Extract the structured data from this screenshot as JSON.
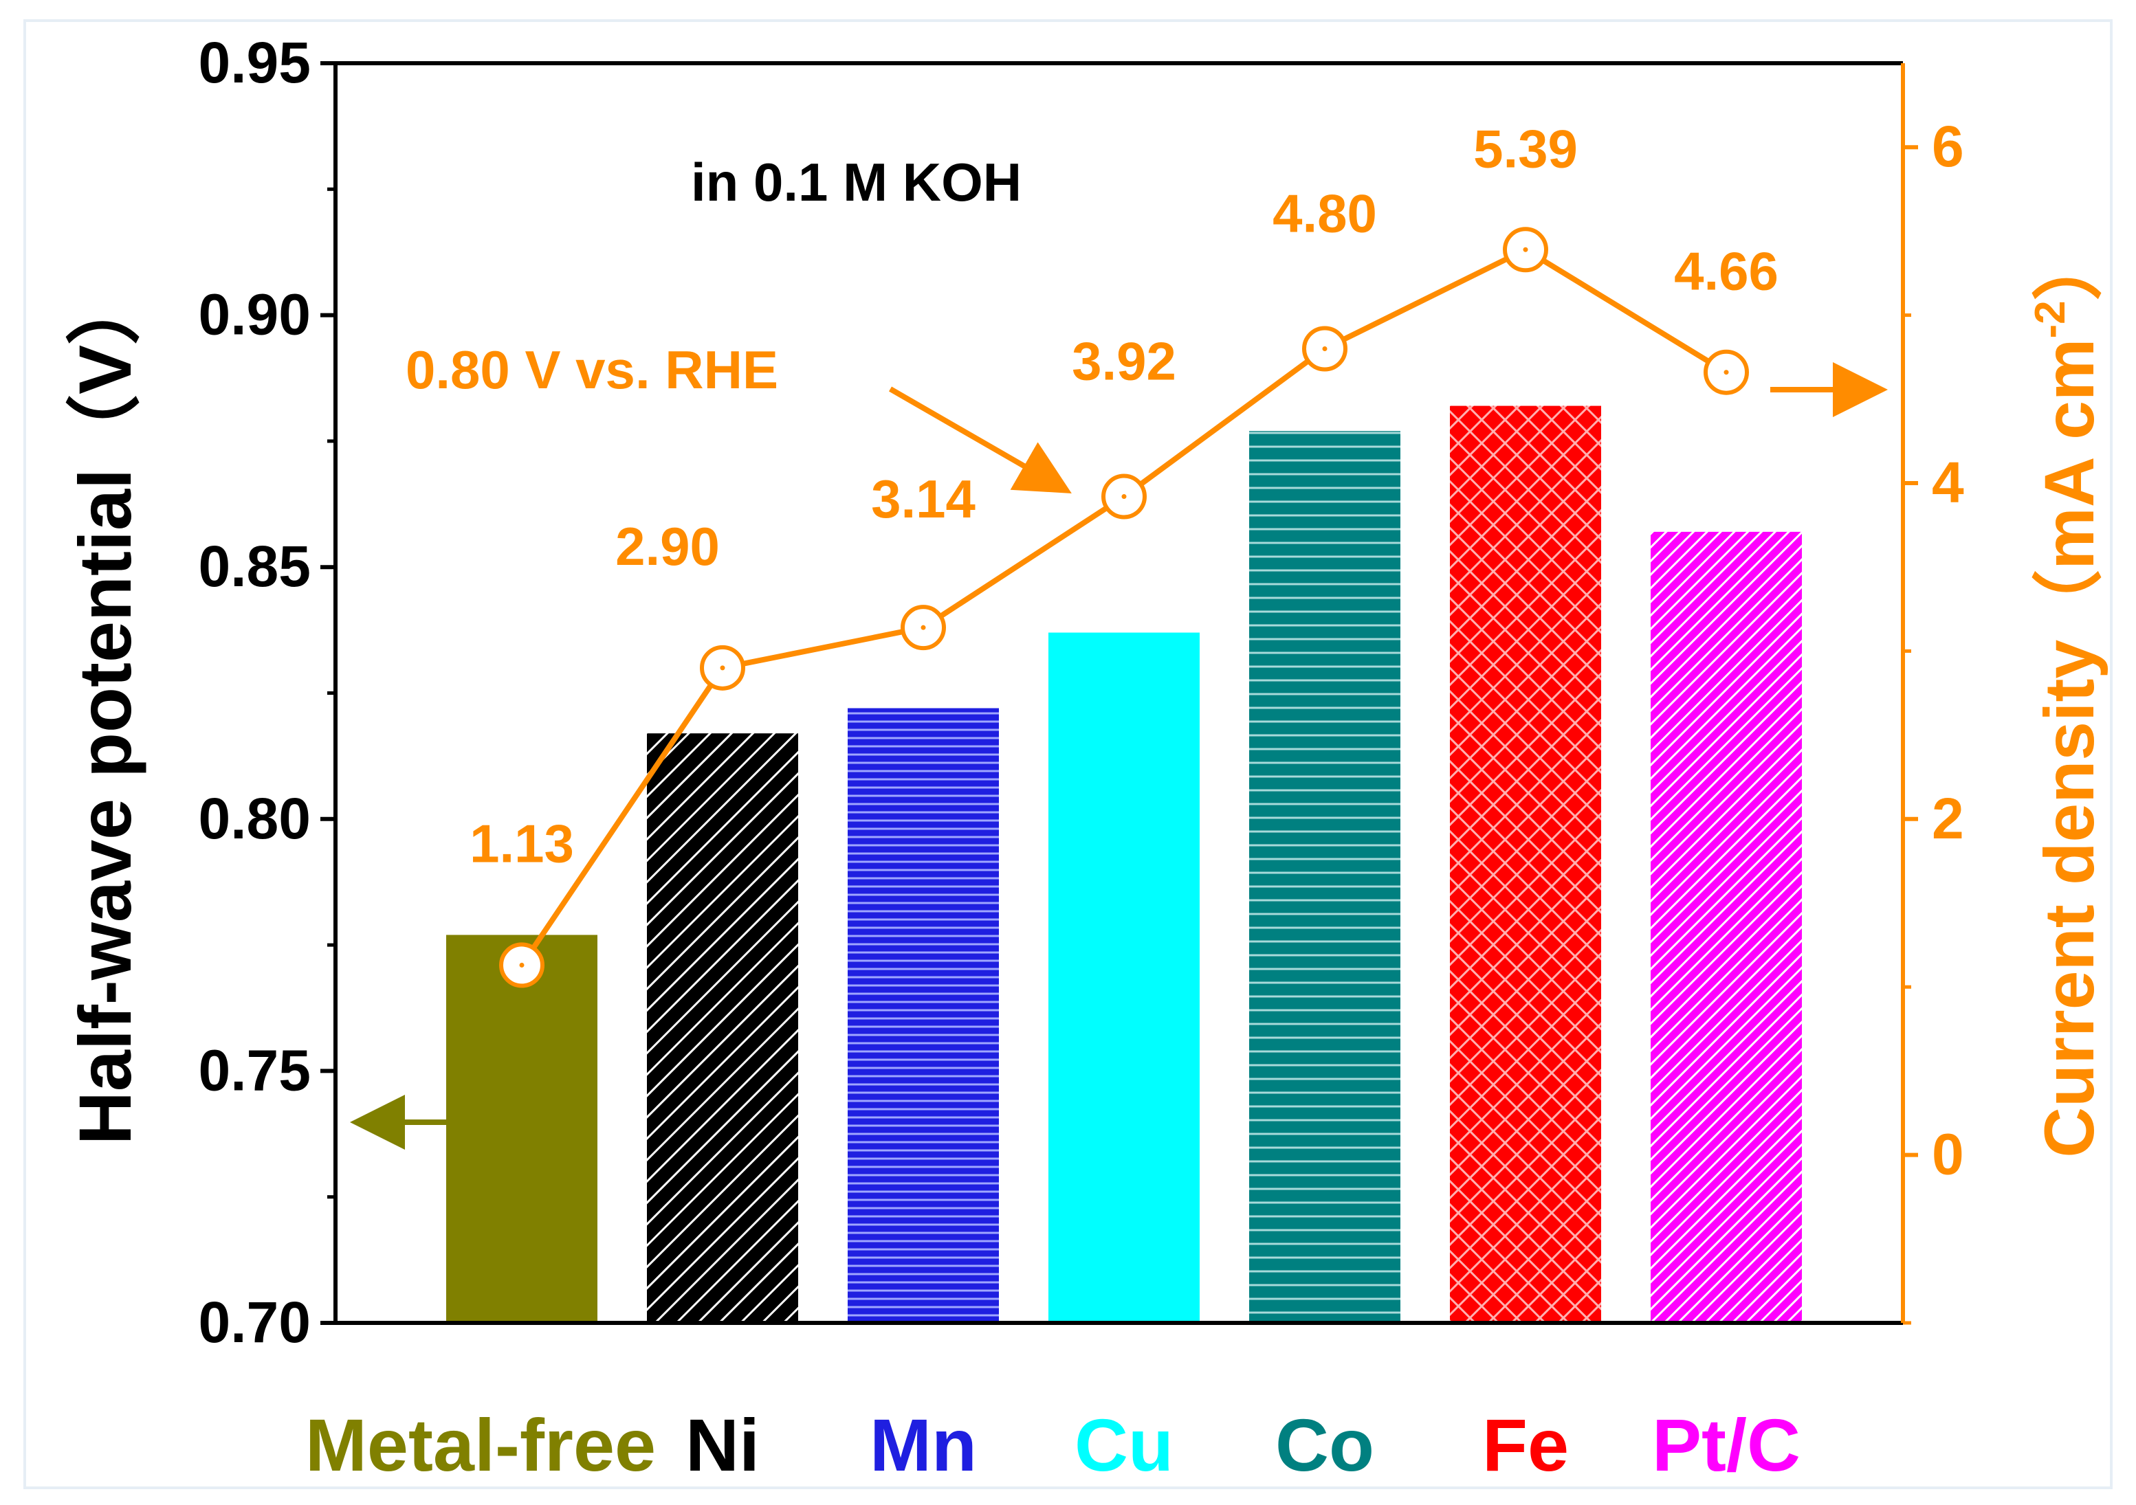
{
  "chart_data": {
    "type": "bar",
    "annotation": "in 0.1 M KOH",
    "reference_label": "0.80 V vs. RHE",
    "categories": [
      "Metal-free",
      "Ni",
      "Mn",
      "Cu",
      "Co",
      "Fe",
      "Pt/C"
    ],
    "category_colors": [
      "#808000",
      "#000000",
      "#1f1fe0",
      "#00ffff",
      "#008080",
      "#ff0000",
      "#ff00ff"
    ],
    "category_patterns": [
      "solid",
      "diagonal",
      "horizontal",
      "solid",
      "horizontal",
      "crosshatch",
      "diagonal"
    ],
    "series": [
      {
        "axis": "left",
        "kind": "bar",
        "values": [
          0.777,
          0.817,
          0.822,
          0.837,
          0.877,
          0.882,
          0.857
        ]
      },
      {
        "axis": "right",
        "kind": "line",
        "color": "#ff8c00",
        "values": [
          1.13,
          2.9,
          3.14,
          3.92,
          4.8,
          5.39,
          4.66
        ],
        "labels": [
          "1.13",
          "2.90",
          "3.14",
          "3.92",
          "4.80",
          "5.39",
          "4.66"
        ]
      }
    ],
    "ylabel": "Half-wave potential（V）",
    "ylim": [
      0.7,
      0.95
    ],
    "yticks": [
      "0.70",
      "0.75",
      "0.80",
      "0.85",
      "0.90",
      "0.95"
    ],
    "y2label_main": "Current density（mA cm",
    "y2label_sup": "-2",
    "y2label_end": "）",
    "y2lim": [
      -1.0,
      6.5
    ],
    "y2ticks": [
      "0",
      "2",
      "4",
      "6"
    ],
    "axis_color_left": "#000000",
    "axis_color_right": "#ff8c00"
  }
}
